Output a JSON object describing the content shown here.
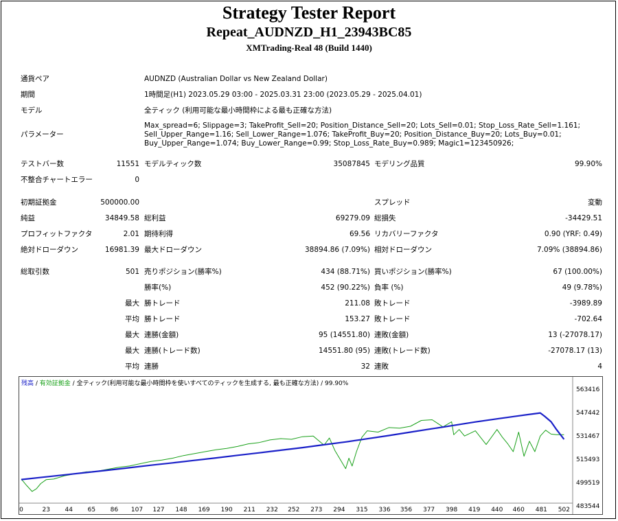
{
  "header": {
    "title": "Strategy Tester Report",
    "expert": "Repeat_AUDNZD_H1_23943BC85",
    "server": "XMTrading-Real 48 (Build 1440)"
  },
  "settings": {
    "symbol_label": "通貨ペア",
    "symbol_value": "AUDNZD (Australian Dollar vs New Zealand Dollar)",
    "period_label": "期間",
    "period_value": "1時間足(H1) 2023.05.29 03:00 - 2025.03.31 23:00 (2023.05.29 - 2025.04.01)",
    "model_label": "モデル",
    "model_value": "全ティック (利用可能な最小時間枠による最も正確な方法)",
    "params_label": "パラメーター",
    "params_lines": [
      "Max_spread=6; Slippage=3; TakeProfit_Sell=20; Position_Distance_Sell=20; Lots_Sell=0.01; Stop_Loss_Rate_Sell=1.161;",
      "Sell_Upper_Range=1.16; Sell_Lower_Range=1.076; TakeProfit_Buy=20; Position_Distance_Buy=20; Lots_Buy=0.01;",
      "Buy_Upper_Range=1.074; Buy_Lower_Range=0.99; Stop_Loss_Rate_Buy=0.989; Magic1=123450926;"
    ]
  },
  "stats": {
    "bars_label": "テストバー数",
    "bars_value": "11551",
    "ticks_label": "モデルティック数",
    "ticks_value": "35087845",
    "quality_label": "モデリング品質",
    "quality_value": "99.90%",
    "mismatch_label": "不整合チャートエラー",
    "mismatch_value": "0",
    "deposit_label": "初期証拠金",
    "deposit_value": "500000.00",
    "spread_label": "スプレッド",
    "spread_value": "変動",
    "net_label": "純益",
    "net_value": "34849.58",
    "gross_profit_label": "総利益",
    "gross_profit_value": "69279.09",
    "gross_loss_label": "総損失",
    "gross_loss_value": "-34429.51",
    "pf_label": "プロフィットファクタ",
    "pf_value": "2.01",
    "expected_label": "期待利得",
    "expected_value": "69.56",
    "recovery_label": "リカバリーファクタ",
    "recovery_value": "0.90 (YRF: 0.49)",
    "abs_dd_label": "絶対ドローダウン",
    "abs_dd_value": "16981.39",
    "max_dd_label": "最大ドローダウン",
    "max_dd_value": "38894.86 (7.09%)",
    "rel_dd_label": "相対ドローダウン",
    "rel_dd_value": "7.09% (38894.86)",
    "trades_label": "総取引数",
    "trades_value": "501",
    "short_label": "売りポジション(勝率%)",
    "short_value": "434 (88.71%)",
    "long_label": "買いポジション(勝率%)",
    "long_value": "67 (100.00%)",
    "win_label": "勝率(%)",
    "win_value": "452 (90.22%)",
    "loss_label": "負率 (%)",
    "loss_value": "49 (9.78%)",
    "largest_prefix": "最大",
    "largest_win_label": "勝トレード",
    "largest_win_value": "211.08",
    "largest_loss_label": "敗トレード",
    "largest_loss_value": "-3989.89",
    "average_prefix": "平均",
    "avg_win_label": "勝トレード",
    "avg_win_value": "153.27",
    "avg_loss_label": "敗トレード",
    "avg_loss_value": "-702.64",
    "max_prefix_a": "最大",
    "max_cons_wins_label": "連勝(金額)",
    "max_cons_wins_value": "95 (14551.80)",
    "max_cons_losses_label": "連敗(金額)",
    "max_cons_losses_value": "13 (-27078.17)",
    "max_prefix_b": "最大",
    "max_cons_profit_label": "連勝(トレード数)",
    "max_cons_profit_value": "14551.80 (95)",
    "max_cons_loss_label": "連敗(トレード数)",
    "max_cons_loss_value": "-27078.17 (13)",
    "avg_prefix_c": "平均",
    "avg_cons_wins_label": "連勝",
    "avg_cons_wins_value": "32",
    "avg_cons_losses_label": "連敗",
    "avg_cons_losses_value": "4"
  },
  "chart_legend": {
    "balance": "残高",
    "sep1": " / ",
    "equity": "有効証拠金",
    "sep2": " / ",
    "model": "全ティック(利用可能な最小時間枠を使いすべてのティックを生成する, 最も正確な方法)",
    "sep3": " / ",
    "quality": "99.90%"
  },
  "chart_data": {
    "type": "line",
    "x_ticks": [
      "0",
      "23",
      "44",
      "65",
      "86",
      "107",
      "127",
      "148",
      "169",
      "190",
      "211",
      "232",
      "252",
      "273",
      "294",
      "315",
      "336",
      "356",
      "377",
      "398",
      "419",
      "440",
      "460",
      "481",
      "502"
    ],
    "y_ticks": [
      "563416",
      "547442",
      "531467",
      "515493",
      "499519",
      "483544"
    ],
    "xlim": [
      0,
      510
    ],
    "ylim": [
      483544,
      571000
    ],
    "series": [
      {
        "name": "残高",
        "color": "#1a20c8",
        "x": [
          0,
          20,
          40,
          60,
          80,
          100,
          120,
          140,
          160,
          180,
          200,
          220,
          240,
          260,
          280,
          300,
          320,
          340,
          360,
          380,
          400,
          420,
          440,
          460,
          480,
          484,
          490,
          495,
          502
        ],
        "y": [
          500600,
          502400,
          504200,
          506000,
          507800,
          509700,
          511600,
          513400,
          515300,
          517200,
          519200,
          521100,
          523100,
          525100,
          527300,
          529500,
          531900,
          534400,
          537000,
          539600,
          542200,
          544800,
          547200,
          549500,
          551700,
          549200,
          545000,
          539000,
          531500
        ]
      },
      {
        "name": "有効証拠金",
        "color": "#18a018",
        "x": [
          0,
          5,
          10,
          14,
          18,
          23,
          30,
          40,
          50,
          60,
          70,
          80,
          90,
          100,
          110,
          120,
          130,
          140,
          150,
          160,
          170,
          180,
          190,
          200,
          210,
          220,
          230,
          240,
          250,
          260,
          270,
          280,
          285,
          290,
          295,
          300,
          303,
          306,
          310,
          315,
          320,
          330,
          340,
          350,
          360,
          370,
          380,
          390,
          398,
          400,
          405,
          410,
          420,
          430,
          440,
          445,
          450,
          455,
          460,
          465,
          470,
          475,
          480,
          485,
          490,
          495,
          502
        ],
        "y": [
          501000,
          496000,
          491500,
          493500,
          497500,
          500500,
          501000,
          503500,
          505000,
          506500,
          507000,
          508500,
          510000,
          511000,
          512800,
          514500,
          515500,
          517000,
          519000,
          520500,
          522000,
          523500,
          524500,
          526000,
          528000,
          529000,
          531000,
          532000,
          531500,
          533500,
          534000,
          527000,
          532500,
          523000,
          516000,
          509000,
          517000,
          511000,
          522000,
          533000,
          538000,
          537000,
          540500,
          540000,
          541500,
          546000,
          546500,
          541000,
          545000,
          535000,
          539000,
          534000,
          538000,
          527500,
          539000,
          533000,
          528000,
          522000,
          537000,
          518500,
          530000,
          522000,
          534000,
          538500,
          535500,
          535000,
          535000
        ]
      }
    ],
    "grid": false
  }
}
